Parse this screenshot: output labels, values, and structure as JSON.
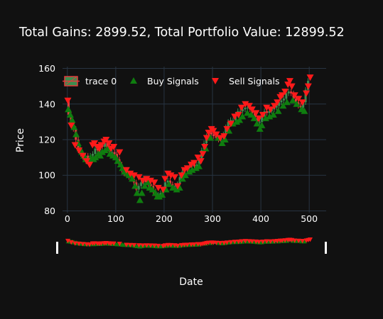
{
  "chart_data": {
    "type": "candlestick",
    "title": "Total Gains: 2899.52, Total Portfolio Value: 12899.52",
    "xlabel": "Date",
    "ylabel": "Price",
    "xlim": [
      -10,
      535
    ],
    "ylim": [
      79,
      161
    ],
    "xticks": [
      0,
      100,
      200,
      300,
      400,
      500
    ],
    "yticks": [
      80,
      100,
      120,
      140,
      160
    ],
    "grid": true,
    "legend_placement": "top",
    "rangeslider": true,
    "price_path": [
      [
        0,
        142
      ],
      [
        5,
        134
      ],
      [
        10,
        130
      ],
      [
        15,
        126
      ],
      [
        20,
        120
      ],
      [
        25,
        114
      ],
      [
        30,
        112
      ],
      [
        35,
        110
      ],
      [
        40,
        111
      ],
      [
        45,
        109
      ],
      [
        50,
        111
      ],
      [
        55,
        112
      ],
      [
        60,
        115
      ],
      [
        65,
        114
      ],
      [
        70,
        117
      ],
      [
        75,
        116
      ],
      [
        80,
        118
      ],
      [
        85,
        115
      ],
      [
        90,
        113
      ],
      [
        95,
        113
      ],
      [
        100,
        112
      ],
      [
        105,
        109
      ],
      [
        110,
        106
      ],
      [
        115,
        103
      ],
      [
        120,
        101
      ],
      [
        125,
        100
      ],
      [
        130,
        99
      ],
      [
        135,
        98
      ],
      [
        140,
        96
      ],
      [
        145,
        92
      ],
      [
        150,
        94
      ],
      [
        155,
        96
      ],
      [
        160,
        98
      ],
      [
        165,
        96
      ],
      [
        170,
        95
      ],
      [
        175,
        94
      ],
      [
        180,
        91
      ],
      [
        185,
        89
      ],
      [
        190,
        89
      ],
      [
        195,
        90
      ],
      [
        200,
        92
      ],
      [
        205,
        96
      ],
      [
        210,
        97
      ],
      [
        215,
        95
      ],
      [
        220,
        94
      ],
      [
        225,
        94
      ],
      [
        230,
        95
      ],
      [
        235,
        99
      ],
      [
        240,
        102
      ],
      [
        245,
        103
      ],
      [
        250,
        104
      ],
      [
        255,
        105
      ],
      [
        260,
        106
      ],
      [
        265,
        105
      ],
      [
        270,
        106
      ],
      [
        275,
        109
      ],
      [
        280,
        114
      ],
      [
        285,
        118
      ],
      [
        290,
        122
      ],
      [
        295,
        124
      ],
      [
        300,
        123
      ],
      [
        305,
        122
      ],
      [
        310,
        121
      ],
      [
        315,
        120
      ],
      [
        320,
        121
      ],
      [
        325,
        123
      ],
      [
        330,
        127
      ],
      [
        335,
        130
      ],
      [
        340,
        131
      ],
      [
        345,
        131
      ],
      [
        350,
        134
      ],
      [
        355,
        136
      ],
      [
        360,
        136
      ],
      [
        365,
        137
      ],
      [
        370,
        138
      ],
      [
        375,
        138
      ],
      [
        380,
        137
      ],
      [
        385,
        135
      ],
      [
        390,
        132
      ],
      [
        395,
        130
      ],
      [
        400,
        130
      ],
      [
        405,
        133
      ],
      [
        410,
        136
      ],
      [
        415,
        135
      ],
      [
        420,
        136
      ],
      [
        425,
        137
      ],
      [
        430,
        138
      ],
      [
        435,
        139
      ],
      [
        440,
        141
      ],
      [
        445,
        142
      ],
      [
        450,
        143
      ],
      [
        455,
        146
      ],
      [
        460,
        147
      ],
      [
        465,
        146
      ],
      [
        470,
        143
      ],
      [
        475,
        141
      ],
      [
        480,
        139
      ],
      [
        485,
        138
      ],
      [
        490,
        141
      ],
      [
        495,
        148
      ],
      [
        500,
        153
      ]
    ],
    "series": [
      {
        "name": "trace 0",
        "type": "candlestick",
        "color": "#e23b3b",
        "fill": "#3d8c4f"
      },
      {
        "name": "Buy Signals",
        "type": "scatter",
        "marker": "triangle-up",
        "color": "#0f7d0f",
        "x": [
          2,
          6,
          10,
          14,
          18,
          22,
          26,
          30,
          34,
          38,
          44,
          48,
          54,
          58,
          64,
          68,
          72,
          78,
          84,
          88,
          94,
          100,
          104,
          110,
          114,
          118,
          124,
          128,
          134,
          140,
          144,
          150,
          154,
          160,
          166,
          170,
          176,
          182,
          186,
          190,
          196,
          204,
          210,
          218,
          226,
          232,
          238,
          244,
          252,
          258,
          266,
          272,
          286,
          296,
          312,
          320,
          326,
          334,
          342,
          350,
          356,
          362,
          372,
          380,
          386,
          392,
          398,
          402,
          410,
          418,
          426,
          436,
          446,
          454,
          466,
          474,
          484,
          490
        ],
        "y": [
          137,
          134,
          131,
          127,
          123,
          118,
          115,
          113,
          111,
          109,
          108,
          110,
          109,
          110,
          112,
          111,
          113,
          114,
          115,
          112,
          111,
          110,
          108,
          106,
          104,
          102,
          101,
          100,
          98,
          94,
          90,
          86,
          90,
          94,
          96,
          93,
          92,
          90,
          88,
          88,
          89,
          92,
          95,
          93,
          92,
          93,
          98,
          100,
          102,
          103,
          104,
          105,
          115,
          121,
          121,
          118,
          120,
          125,
          129,
          130,
          131,
          133,
          135,
          134,
          132,
          129,
          126,
          128,
          132,
          133,
          134,
          136,
          139,
          141,
          142,
          140,
          137,
          136
        ]
      },
      {
        "name": "Sell Signals",
        "type": "scatter",
        "marker": "triangle-down",
        "color": "#ff1a1a",
        "x": [
          1,
          8,
          16,
          24,
          32,
          40,
          46,
          52,
          56,
          62,
          66,
          70,
          76,
          80,
          86,
          90,
          96,
          108,
          122,
          130,
          138,
          148,
          156,
          164,
          172,
          180,
          188,
          198,
          202,
          208,
          214,
          222,
          228,
          236,
          242,
          248,
          256,
          262,
          270,
          276,
          280,
          284,
          288,
          292,
          298,
          302,
          308,
          316,
          324,
          330,
          338,
          346,
          354,
          360,
          368,
          376,
          382,
          390,
          396,
          404,
          412,
          420,
          428,
          434,
          440,
          444,
          450,
          456,
          460,
          464,
          470,
          478,
          486,
          494,
          498,
          502
        ],
        "y": [
          142,
          128,
          117,
          114,
          111,
          108,
          106,
          117,
          118,
          116,
          115,
          117,
          119,
          120,
          118,
          115,
          116,
          113,
          103,
          101,
          100,
          99,
          97,
          98,
          97,
          96,
          93,
          92,
          98,
          101,
          100,
          99,
          94,
          100,
          103,
          104,
          106,
          107,
          110,
          108,
          112,
          116,
          121,
          124,
          126,
          125,
          123,
          121,
          122,
          126,
          129,
          133,
          134,
          138,
          140,
          139,
          137,
          135,
          132,
          134,
          138,
          137,
          139,
          141,
          144,
          145,
          147,
          151,
          153,
          150,
          145,
          143,
          141,
          146,
          150,
          155
        ]
      }
    ]
  }
}
